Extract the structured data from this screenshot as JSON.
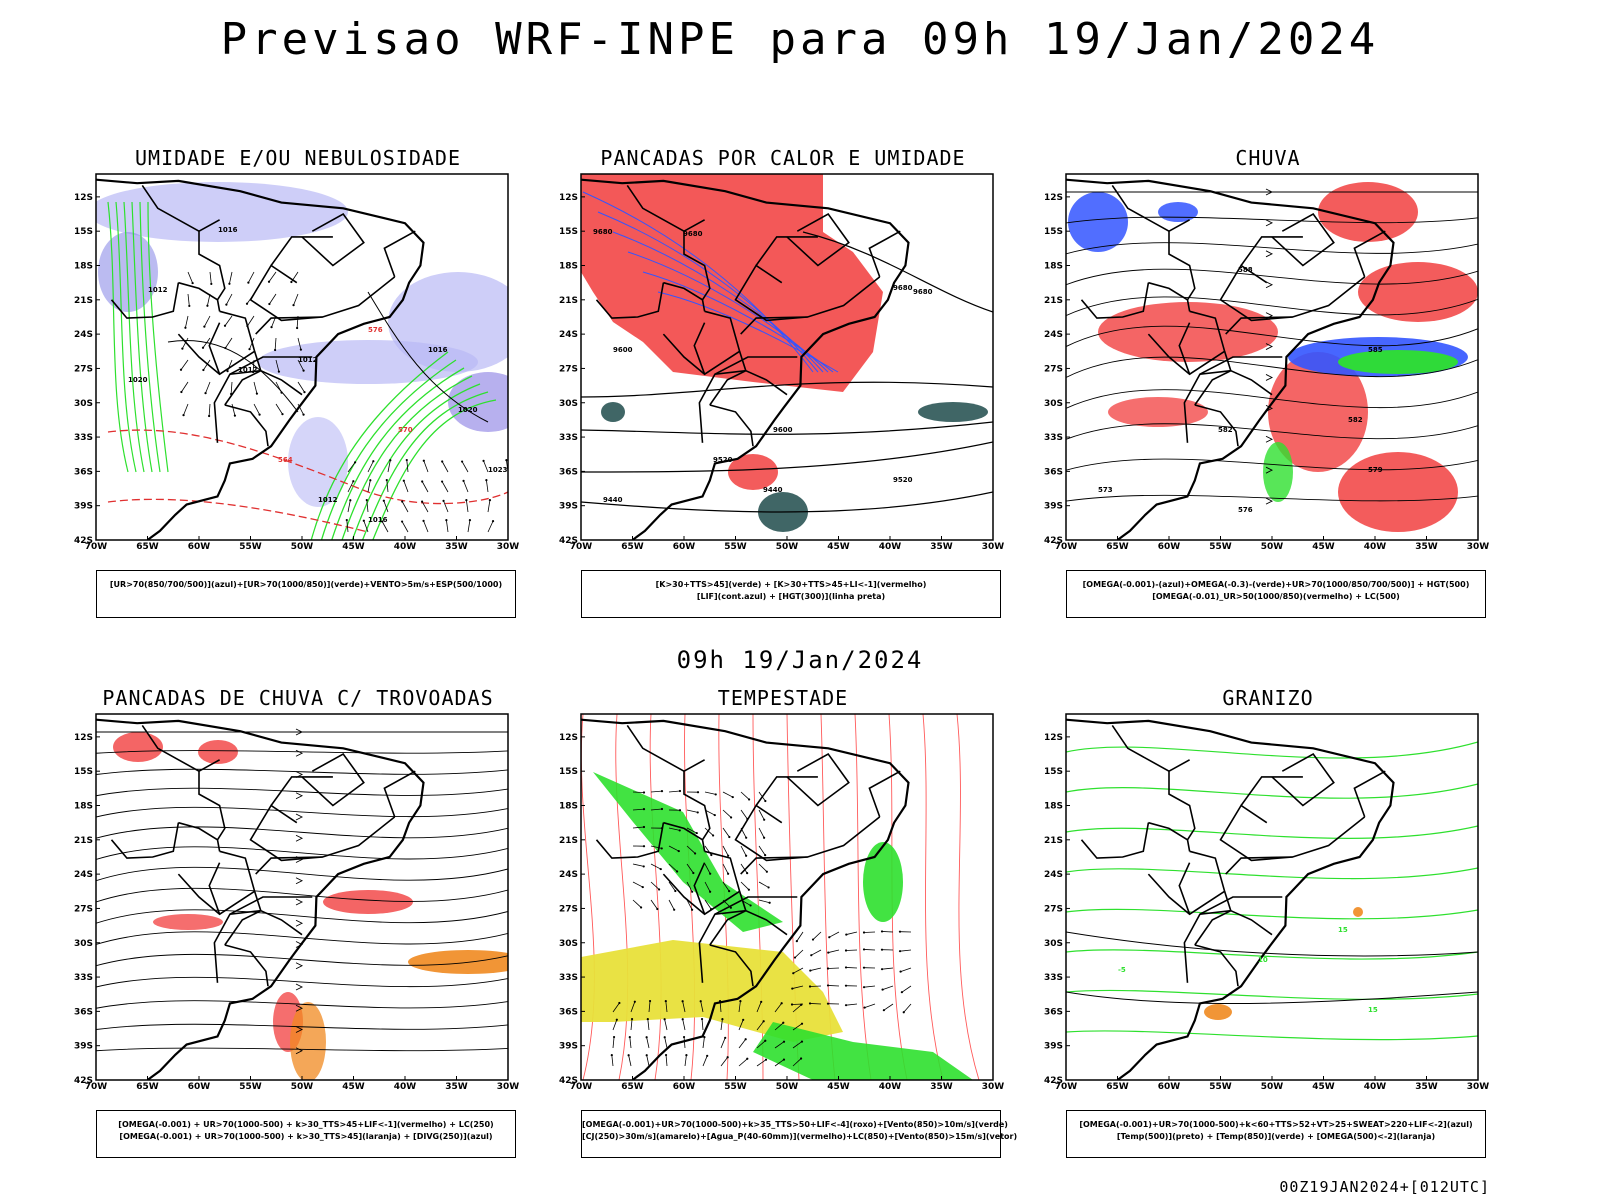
{
  "header": {
    "title": "Previsao WRF-INPE  para 09h 19/Jan/2024"
  },
  "mid_title": "09h 19/Jan/2024",
  "footer": "00Z19JAN2024+[012UTC]",
  "axes": {
    "lat_labels": [
      "12S",
      "15S",
      "18S",
      "21S",
      "24S",
      "27S",
      "30S",
      "33S",
      "36S",
      "39S",
      "42S"
    ],
    "lon_labels": [
      "70W",
      "65W",
      "60W",
      "55W",
      "50W",
      "45W",
      "40W",
      "35W",
      "30W"
    ]
  },
  "colors": {
    "red": "#f24a4a",
    "green": "#2ee02e",
    "blue": "#3355ff",
    "lavender": "#b9b9f5",
    "yellow": "#e8e03a",
    "orange": "#f08a20",
    "darkteal": "#1f4b4b"
  },
  "panels": [
    {
      "id": "umidade",
      "title": "UMIDADE E/OU NEBULOSIDADE",
      "legend": [
        "[UR>70(850/700/500)](azul)+[UR>70(1000/850)](verde)+VENTO>5m/s+ESP(500/1000)"
      ],
      "labels": [
        "1016",
        "1012",
        "1020",
        "1012",
        "1012",
        "576",
        "570",
        "1016",
        "1020",
        "1023",
        "1012",
        "1016",
        "564"
      ]
    },
    {
      "id": "calor",
      "title": "PANCADAS POR CALOR E UMIDADE",
      "legend": [
        "[K>30+TTS>45](verde) + [K>30+TTS>45+LI<-1](vermelho)",
        "[LIF](cont.azul) + [HGT(300)](linha preta)"
      ],
      "labels": [
        "9680",
        "9680",
        "9680",
        "9680",
        "9600",
        "9600",
        "9520",
        "9520",
        "9440",
        "9440"
      ]
    },
    {
      "id": "chuva",
      "title": "CHUVA",
      "legend": [
        "[OMEGA(-0.001)-(azul)+OMEGA(-0.3)-(verde)+UR>70(1000/850/700/500)] + HGT(500)",
        "[OMEGA(-0.01)_UR>50(1000/850)(vermelho) + LC(500)"
      ],
      "labels": [
        "588",
        "585",
        "582",
        "579",
        "576",
        "573",
        "582"
      ]
    },
    {
      "id": "trovoadas",
      "title": "PANCADAS DE CHUVA C/ TROVOADAS",
      "legend": [
        "[OMEGA(-0.001) + UR>70(1000-500) + k>30_TTS>45+LIF<-1](vermelho) + LC(250)",
        "[OMEGA(-0.001) + UR>70(1000-500) + k>30_TTS>45](laranja) + [DIVG(250)](azul)"
      ],
      "labels": []
    },
    {
      "id": "tempestade",
      "title": "TEMPESTADE",
      "legend": [
        "[OMEGA(-0.001)+UR>70(1000-500)+k>35_TTS>50+LIF<-4](roxo)+[Vento(850)>10m/s](verde)",
        "[CJ(250)>30m/s](amarelo)+[Agua_P(40-60mm)](vermelho)+LC(850)+[Vento(850)>15m/s](vetor)"
      ],
      "labels": []
    },
    {
      "id": "granizo",
      "title": "GRANIZO",
      "legend": [
        "[OMEGA(-0.001)+UR>70(1000-500)+k<60+TTS>52+VT>25+SWEAT>220+LIF<-2](azul)",
        "[Temp(500)](preto) + [Temp(850)](verde) + [OMEGA(500)<-2](laranja)"
      ],
      "labels": [
        "-5",
        "10",
        "15",
        "15"
      ]
    }
  ]
}
